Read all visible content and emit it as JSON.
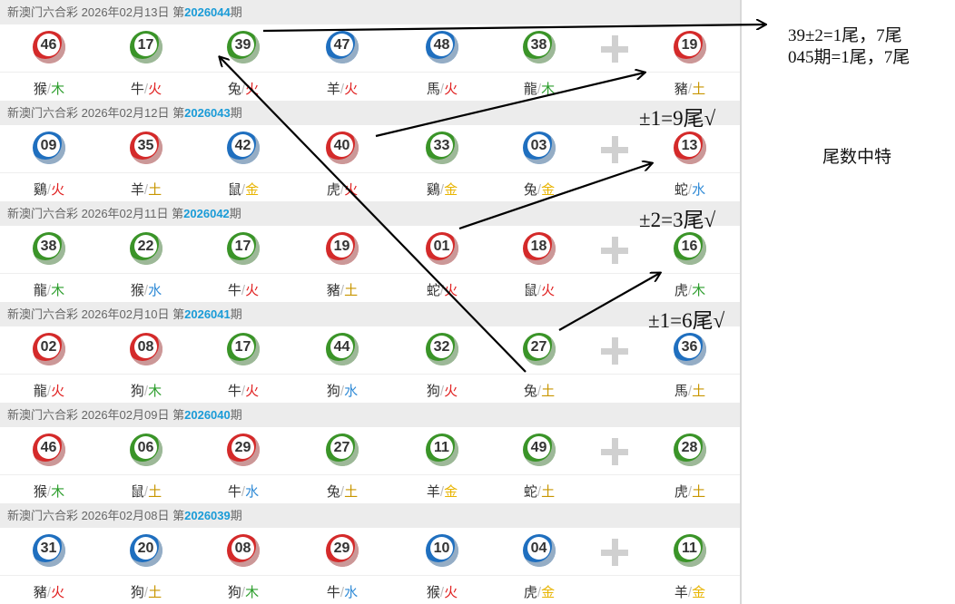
{
  "lottery_name": "新澳门六合彩",
  "period_prefix": "第",
  "period_suffix": "期",
  "colors": {
    "red": "#d42a2a",
    "green": "#3a9428",
    "blue": "#1f6fbf",
    "木": "#2e9e2e",
    "火": "#e02020",
    "土": "#c89600",
    "金": "#e8b400",
    "水": "#2f8ad6"
  },
  "periods": [
    {
      "date": "2026年02月13日",
      "issue": "2026044",
      "balls": [
        {
          "n": "46",
          "c": "red",
          "z": "猴",
          "e": "木"
        },
        {
          "n": "17",
          "c": "green",
          "z": "牛",
          "e": "火"
        },
        {
          "n": "39",
          "c": "green",
          "z": "兔",
          "e": "火"
        },
        {
          "n": "47",
          "c": "blue",
          "z": "羊",
          "e": "火"
        },
        {
          "n": "48",
          "c": "blue",
          "z": "馬",
          "e": "火"
        },
        {
          "n": "38",
          "c": "green",
          "z": "龍",
          "e": "木"
        },
        {
          "n": "19",
          "c": "red",
          "z": "豬",
          "e": "土"
        }
      ]
    },
    {
      "date": "2026年02月12日",
      "issue": "2026043",
      "balls": [
        {
          "n": "09",
          "c": "blue",
          "z": "鷄",
          "e": "火"
        },
        {
          "n": "35",
          "c": "red",
          "z": "羊",
          "e": "土"
        },
        {
          "n": "42",
          "c": "blue",
          "z": "鼠",
          "e": "金"
        },
        {
          "n": "40",
          "c": "red",
          "z": "虎",
          "e": "火"
        },
        {
          "n": "33",
          "c": "green",
          "z": "鷄",
          "e": "金"
        },
        {
          "n": "03",
          "c": "blue",
          "z": "兔",
          "e": "金"
        },
        {
          "n": "13",
          "c": "red",
          "z": "蛇",
          "e": "水"
        }
      ]
    },
    {
      "date": "2026年02月11日",
      "issue": "2026042",
      "balls": [
        {
          "n": "38",
          "c": "green",
          "z": "龍",
          "e": "木"
        },
        {
          "n": "22",
          "c": "green",
          "z": "猴",
          "e": "水"
        },
        {
          "n": "17",
          "c": "green",
          "z": "牛",
          "e": "火"
        },
        {
          "n": "19",
          "c": "red",
          "z": "豬",
          "e": "土"
        },
        {
          "n": "01",
          "c": "red",
          "z": "蛇",
          "e": "火"
        },
        {
          "n": "18",
          "c": "red",
          "z": "鼠",
          "e": "火"
        },
        {
          "n": "16",
          "c": "green",
          "z": "虎",
          "e": "木"
        }
      ]
    },
    {
      "date": "2026年02月10日",
      "issue": "2026041",
      "balls": [
        {
          "n": "02",
          "c": "red",
          "z": "龍",
          "e": "火"
        },
        {
          "n": "08",
          "c": "red",
          "z": "狗",
          "e": "木"
        },
        {
          "n": "17",
          "c": "green",
          "z": "牛",
          "e": "火"
        },
        {
          "n": "44",
          "c": "green",
          "z": "狗",
          "e": "水"
        },
        {
          "n": "32",
          "c": "green",
          "z": "狗",
          "e": "火"
        },
        {
          "n": "27",
          "c": "green",
          "z": "兔",
          "e": "土"
        },
        {
          "n": "36",
          "c": "blue",
          "z": "馬",
          "e": "土"
        }
      ]
    },
    {
      "date": "2026年02月09日",
      "issue": "2026040",
      "balls": [
        {
          "n": "46",
          "c": "red",
          "z": "猴",
          "e": "木"
        },
        {
          "n": "06",
          "c": "green",
          "z": "鼠",
          "e": "土"
        },
        {
          "n": "29",
          "c": "red",
          "z": "牛",
          "e": "水"
        },
        {
          "n": "27",
          "c": "green",
          "z": "兔",
          "e": "土"
        },
        {
          "n": "11",
          "c": "green",
          "z": "羊",
          "e": "金"
        },
        {
          "n": "49",
          "c": "green",
          "z": "蛇",
          "e": "土"
        },
        {
          "n": "28",
          "c": "green",
          "z": "虎",
          "e": "土"
        }
      ]
    },
    {
      "date": "2026年02月08日",
      "issue": "2026039",
      "balls": [
        {
          "n": "31",
          "c": "blue",
          "z": "豬",
          "e": "火"
        },
        {
          "n": "20",
          "c": "blue",
          "z": "狗",
          "e": "土"
        },
        {
          "n": "08",
          "c": "red",
          "z": "狗",
          "e": "木"
        },
        {
          "n": "29",
          "c": "red",
          "z": "牛",
          "e": "水"
        },
        {
          "n": "10",
          "c": "blue",
          "z": "猴",
          "e": "火"
        },
        {
          "n": "04",
          "c": "blue",
          "z": "虎",
          "e": "金"
        },
        {
          "n": "11",
          "c": "green",
          "z": "羊",
          "e": "金"
        }
      ]
    }
  ],
  "annotations": {
    "line1": "39±2=1尾，7尾",
    "line2": "045期=1尾，7尾",
    "note_043": "±1=9尾√",
    "note_042": "±2=3尾√",
    "note_041": "±1=6尾√",
    "title": "尾数中特"
  }
}
